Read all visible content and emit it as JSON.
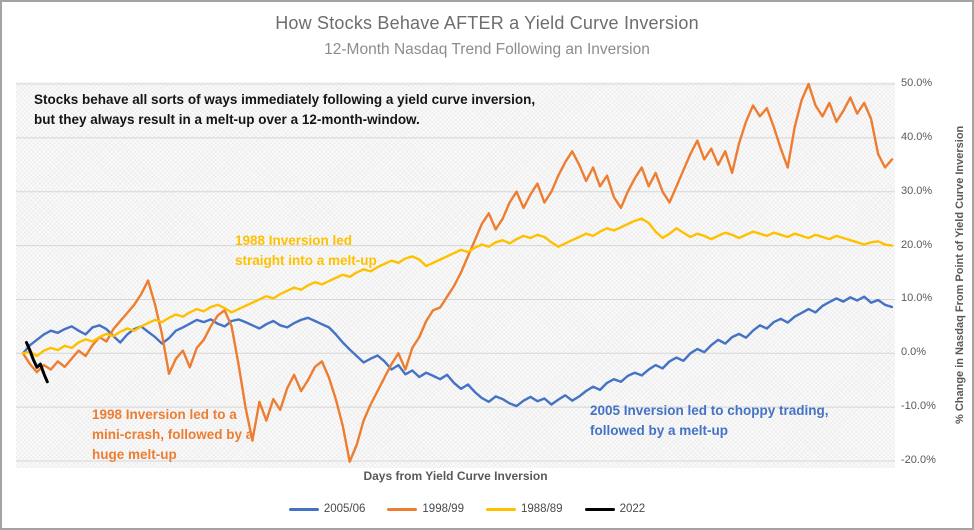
{
  "header": {
    "title": "How Stocks Behave AFTER a Yield Curve Inversion",
    "subtitle": "12-Month Nasdaq Trend Following an Inversion"
  },
  "annotations": {
    "main": {
      "lines": [
        "Stocks behave all sorts of ways immediately following a yield curve inversion,",
        "but they always result in a melt-up over a 12-month-window."
      ],
      "color": "#151515"
    },
    "inv1988": {
      "lines": [
        "1988 Inversion led",
        "straight into a melt-up"
      ],
      "color": "#ffc000"
    },
    "inv1998": {
      "lines": [
        "1998 Inversion led to a",
        "mini-crash, followed by a",
        "huge melt-up"
      ],
      "color": "#ed7d31"
    },
    "inv2005": {
      "lines": [
        "2005 Inversion led to choppy trading,",
        "followed by a melt-up"
      ],
      "color": "#4472c4"
    }
  },
  "chart_data": {
    "type": "line",
    "title": "How Stocks Behave AFTER a Yield Curve Inversion",
    "subtitle": "12-Month Nasdaq Trend Following an Inversion",
    "xlabel": "Days from Yield Curve Inversion",
    "ylabel": "% Change in Nasdaq From Point of Yield Curve Inversion",
    "x_max_days": 250,
    "ylim": [
      -20,
      50
    ],
    "grid": "horizontal",
    "legend_position": "bottom",
    "gridline_color": "#d6d6d6",
    "y_ticks": [
      {
        "value": 50,
        "label": "50.0%"
      },
      {
        "value": 40,
        "label": "40.0%"
      },
      {
        "value": 30,
        "label": "30.0%"
      },
      {
        "value": 20,
        "label": "20.0%"
      },
      {
        "value": 10,
        "label": "10.0%"
      },
      {
        "value": 0,
        "label": "0.0%"
      },
      {
        "value": -10,
        "label": "-10.0%"
      },
      {
        "value": -20,
        "label": "-20.0%"
      }
    ],
    "series": [
      {
        "name": "2005/06",
        "color": "#4472c4",
        "start_day": 0,
        "day_step": 2,
        "values": [
          0,
          1.5,
          2.5,
          3.5,
          4.2,
          3.8,
          4.5,
          5.0,
          4.2,
          3.5,
          4.8,
          5.2,
          4.5,
          3.2,
          2.0,
          3.5,
          4.5,
          5.0,
          4.0,
          3.0,
          1.8,
          2.8,
          4.2,
          4.8,
          5.5,
          6.2,
          5.8,
          6.3,
          5.5,
          5.0,
          6.0,
          6.3,
          5.8,
          5.2,
          4.6,
          5.4,
          6.0,
          5.2,
          4.8,
          5.6,
          6.2,
          6.6,
          6.0,
          5.4,
          4.8,
          3.5,
          2.0,
          0.7,
          -0.5,
          -1.7,
          -1.0,
          -0.4,
          -1.5,
          -3.0,
          -2.2,
          -3.9,
          -3.2,
          -4.4,
          -3.6,
          -4.2,
          -4.8,
          -4.0,
          -5.5,
          -6.6,
          -5.8,
          -7.2,
          -8.3,
          -9.0,
          -8.0,
          -8.5,
          -9.3,
          -9.8,
          -8.8,
          -8.1,
          -8.9,
          -8.4,
          -9.5,
          -8.6,
          -7.8,
          -8.8,
          -8.0,
          -7.0,
          -6.2,
          -6.8,
          -5.5,
          -4.8,
          -5.3,
          -4.2,
          -3.6,
          -4.1,
          -3.0,
          -2.2,
          -2.8,
          -1.5,
          -0.8,
          -1.4,
          0.0,
          0.8,
          0.2,
          1.5,
          2.5,
          1.8,
          3.0,
          3.6,
          2.9,
          4.2,
          5.2,
          4.6,
          5.8,
          6.4,
          5.7,
          6.8,
          7.5,
          8.2,
          7.6,
          8.8,
          9.5,
          10.2,
          9.6,
          10.4,
          9.8,
          10.5,
          9.4,
          9.9,
          9.0,
          8.6
        ]
      },
      {
        "name": "1998/99",
        "color": "#ed7d31",
        "start_day": 0,
        "day_step": 2,
        "values": [
          0,
          -2.0,
          -3.5,
          -2.2,
          -3.0,
          -1.5,
          -2.5,
          -1.0,
          0.5,
          -0.5,
          1.5,
          3.0,
          2.2,
          4.5,
          6.0,
          7.5,
          9.0,
          11.0,
          13.5,
          9.0,
          3.5,
          -3.8,
          -1.0,
          0.5,
          -2.6,
          1.0,
          2.5,
          5.0,
          7.0,
          8.0,
          5.0,
          -2.0,
          -10.0,
          -16.2,
          -9.0,
          -12.5,
          -8.5,
          -10.5,
          -6.5,
          -4.0,
          -7.0,
          -5.0,
          -2.5,
          -1.5,
          -4.5,
          -8.5,
          -13.5,
          -20.1,
          -17.0,
          -12.5,
          -9.5,
          -7.0,
          -4.5,
          -2.0,
          0.0,
          -3.0,
          1.0,
          3.0,
          6.0,
          8.0,
          8.5,
          10.5,
          12.5,
          15.0,
          18.0,
          21.0,
          24.0,
          26.0,
          23.0,
          25.0,
          28.0,
          30.0,
          27.0,
          29.5,
          31.5,
          28.0,
          30.0,
          33.0,
          35.5,
          37.5,
          35.0,
          32.0,
          34.5,
          31.0,
          33.0,
          29.0,
          27.0,
          30.0,
          32.5,
          34.5,
          31.0,
          33.5,
          30.0,
          28.0,
          31.0,
          34.0,
          37.0,
          39.5,
          36.0,
          38.0,
          35.0,
          37.5,
          33.5,
          39.0,
          43.0,
          46.0,
          44.0,
          45.5,
          42.0,
          38.0,
          34.5,
          42.0,
          47.0,
          50.0,
          46.0,
          44.0,
          46.5,
          43.0,
          45.0,
          47.5,
          44.5,
          46.5,
          43.5,
          37.0,
          34.5,
          36.0
        ]
      },
      {
        "name": "1988/89",
        "color": "#ffc000",
        "start_day": 0,
        "day_step": 2,
        "values": [
          0,
          0.3,
          -0.5,
          0.5,
          1.0,
          0.6,
          1.4,
          1.0,
          2.0,
          2.6,
          2.2,
          3.0,
          3.6,
          3.2,
          4.0,
          4.6,
          4.2,
          5.0,
          5.6,
          6.2,
          5.8,
          6.6,
          7.2,
          6.8,
          7.6,
          8.2,
          7.8,
          8.6,
          9.0,
          8.4,
          7.6,
          8.2,
          8.8,
          9.4,
          10.0,
          10.6,
          10.2,
          11.0,
          11.6,
          12.2,
          11.8,
          12.6,
          13.2,
          12.8,
          13.4,
          14.0,
          14.6,
          14.2,
          15.0,
          15.6,
          15.2,
          16.0,
          16.6,
          17.2,
          16.8,
          17.6,
          18.0,
          17.4,
          16.2,
          16.8,
          17.4,
          18.0,
          18.6,
          19.2,
          18.8,
          19.6,
          20.2,
          19.8,
          20.6,
          21.0,
          20.4,
          21.2,
          21.8,
          21.4,
          22.0,
          21.6,
          20.6,
          19.8,
          20.4,
          21.0,
          21.6,
          22.2,
          21.8,
          22.6,
          23.2,
          22.8,
          23.4,
          24.0,
          24.6,
          25.0,
          24.2,
          22.6,
          21.4,
          22.2,
          23.2,
          22.4,
          21.6,
          22.2,
          21.8,
          21.2,
          21.8,
          22.4,
          22.0,
          21.4,
          22.0,
          22.6,
          22.2,
          21.8,
          22.4,
          22.0,
          21.6,
          22.2,
          21.8,
          21.4,
          22.0,
          21.6,
          21.2,
          21.8,
          21.4,
          21.0,
          20.6,
          20.2,
          20.6,
          20.8,
          20.2,
          20.0
        ]
      },
      {
        "name": "2022",
        "color": "#000000",
        "start_day": 1,
        "day_step": 1,
        "values": [
          2.0,
          0.5,
          -1.2,
          -2.6,
          -2.0,
          -3.8,
          -5.3
        ]
      }
    ]
  }
}
